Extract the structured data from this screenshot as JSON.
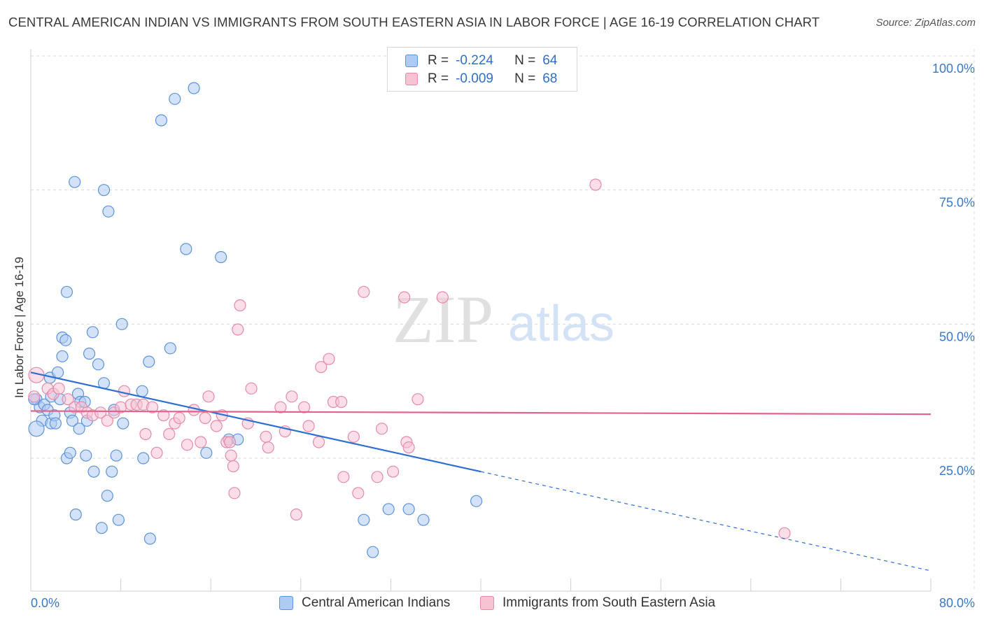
{
  "header": {
    "title": "CENTRAL AMERICAN INDIAN VS IMMIGRANTS FROM SOUTH EASTERN ASIA IN LABOR FORCE | AGE 16-19 CORRELATION CHART",
    "source": "Source: ZipAtlas.com"
  },
  "legend": {
    "r_label": "R =",
    "n_label": "N =",
    "rows": [
      {
        "r": "-0.224",
        "n": "64",
        "color": "#7fb0f0"
      },
      {
        "r": "-0.009",
        "n": "68",
        "color": "#f3a8c0"
      }
    ]
  },
  "watermark": {
    "zip": "ZIP",
    "atlas": "atlas"
  },
  "colors": {
    "blue_fill": "#aecbf3",
    "blue_stroke": "#5b93dc",
    "blue_line": "#2d6fd2",
    "pink_fill": "#f7c3d3",
    "pink_stroke": "#e58aa8",
    "pink_line": "#e3638c",
    "tick_label": "#3a78c9",
    "grid": "#d9d9d9"
  },
  "chart_data": {
    "type": "scatter",
    "ylabel": "In Labor Force | Age 16-19",
    "xlabel": "",
    "xlim": [
      0,
      80
    ],
    "ylim": [
      0,
      104
    ],
    "x_tick_labels": [
      "0.0%",
      "80.0%"
    ],
    "y_ticks": [
      25,
      50,
      75,
      100
    ],
    "y_tick_labels": [
      "25.0%",
      "50.0%",
      "75.0%",
      "100.0%"
    ],
    "grid": true,
    "legend_position": "top-center",
    "series": [
      {
        "name": "Central American Indians",
        "color": "#5b93dc",
        "trend": {
          "x": [
            0,
            40
          ],
          "y": [
            41.0,
            22.5
          ],
          "dashed_to": [
            80,
            4.0
          ]
        },
        "points": [
          [
            0.5,
            36
          ],
          [
            0.8,
            34.5
          ],
          [
            1,
            32
          ],
          [
            1.2,
            35
          ],
          [
            1.5,
            34
          ],
          [
            1.7,
            40
          ],
          [
            1.8,
            36.5
          ],
          [
            1.8,
            31.5
          ],
          [
            2.1,
            33
          ],
          [
            2.2,
            31.5
          ],
          [
            2.4,
            41
          ],
          [
            2.6,
            36
          ],
          [
            2.8,
            44
          ],
          [
            2.8,
            47.5
          ],
          [
            3.1,
            47
          ],
          [
            3.2,
            56
          ],
          [
            3.2,
            25
          ],
          [
            3.5,
            26
          ],
          [
            3.5,
            33.5
          ],
          [
            3.7,
            32
          ],
          [
            3.9,
            76.5
          ],
          [
            4.0,
            14.5
          ],
          [
            4.2,
            37
          ],
          [
            4.3,
            30.5
          ],
          [
            4.4,
            35.5
          ],
          [
            4.8,
            35.5
          ],
          [
            4.9,
            25.5
          ],
          [
            5.0,
            32
          ],
          [
            5.2,
            44.5
          ],
          [
            5.5,
            48.5
          ],
          [
            5.6,
            22.5
          ],
          [
            6.0,
            42.5
          ],
          [
            6.3,
            12
          ],
          [
            6.5,
            39
          ],
          [
            6.5,
            75
          ],
          [
            6.8,
            18
          ],
          [
            6.9,
            71
          ],
          [
            7.2,
            22.5
          ],
          [
            7.6,
            25.5
          ],
          [
            7.8,
            13.5
          ],
          [
            8.1,
            50
          ],
          [
            8.2,
            31.5
          ],
          [
            9.9,
            37.5
          ],
          [
            10.0,
            25
          ],
          [
            10.5,
            43
          ],
          [
            10.6,
            10
          ],
          [
            11.6,
            88
          ],
          [
            12.4,
            45.5
          ],
          [
            12.8,
            92
          ],
          [
            13.8,
            64
          ],
          [
            14.5,
            94
          ],
          [
            15.6,
            26
          ],
          [
            16.9,
            62.5
          ],
          [
            17.6,
            28.5
          ],
          [
            18.4,
            28.5
          ],
          [
            29.6,
            13.5
          ],
          [
            30.4,
            7.5
          ],
          [
            31.8,
            15.5
          ],
          [
            33.6,
            15.5
          ],
          [
            34.9,
            13.5
          ],
          [
            39.6,
            17
          ],
          [
            0.5,
            30.5
          ],
          [
            0.3,
            36
          ],
          [
            7.4,
            34
          ]
        ]
      },
      {
        "name": "Immigrants from South Eastern Asia",
        "color": "#e58aa8",
        "trend": {
          "x": [
            0,
            80
          ],
          "y": [
            33.8,
            33.2
          ]
        },
        "points": [
          [
            0.5,
            40.5
          ],
          [
            1.5,
            38
          ],
          [
            2.0,
            37
          ],
          [
            2.5,
            38
          ],
          [
            3.3,
            36
          ],
          [
            3.9,
            34.5
          ],
          [
            4.5,
            34.5
          ],
          [
            5,
            33.5
          ],
          [
            5.5,
            33
          ],
          [
            6.2,
            33.5
          ],
          [
            6.8,
            32
          ],
          [
            7.4,
            33.5
          ],
          [
            8.0,
            34.5
          ],
          [
            8.3,
            37.5
          ],
          [
            8.9,
            35
          ],
          [
            9.4,
            35
          ],
          [
            10.0,
            35
          ],
          [
            10.2,
            29.5
          ],
          [
            10.8,
            34.5
          ],
          [
            11.2,
            26
          ],
          [
            11.8,
            33
          ],
          [
            12.3,
            29.5
          ],
          [
            12.8,
            31.5
          ],
          [
            13.2,
            32.5
          ],
          [
            13.9,
            27.5
          ],
          [
            14.5,
            34
          ],
          [
            15.1,
            28
          ],
          [
            15.5,
            32.5
          ],
          [
            15.8,
            36.5
          ],
          [
            16.5,
            31
          ],
          [
            17.0,
            33
          ],
          [
            17.4,
            28
          ],
          [
            17.7,
            28
          ],
          [
            17.8,
            25.5
          ],
          [
            18.0,
            23.5
          ],
          [
            18.1,
            18.5
          ],
          [
            18.4,
            49
          ],
          [
            18.6,
            53.5
          ],
          [
            19.3,
            31.5
          ],
          [
            19.6,
            38
          ],
          [
            20.9,
            29
          ],
          [
            21.1,
            27
          ],
          [
            22.2,
            34.5
          ],
          [
            22.6,
            30
          ],
          [
            23.2,
            36.5
          ],
          [
            23.6,
            14.5
          ],
          [
            24.3,
            34.5
          ],
          [
            24.7,
            31
          ],
          [
            25.6,
            28
          ],
          [
            25.8,
            42
          ],
          [
            26.5,
            43.5
          ],
          [
            26.9,
            35.5
          ],
          [
            27.6,
            35.5
          ],
          [
            27.8,
            21.5
          ],
          [
            28.7,
            29
          ],
          [
            29.1,
            18.5
          ],
          [
            29.6,
            56
          ],
          [
            30.8,
            21.5
          ],
          [
            31.2,
            30.5
          ],
          [
            32.2,
            22.5
          ],
          [
            33.2,
            55
          ],
          [
            33.4,
            28
          ],
          [
            33.6,
            27
          ],
          [
            34.4,
            36
          ],
          [
            36.6,
            55
          ],
          [
            50.2,
            76
          ],
          [
            67.0,
            11
          ],
          [
            0.3,
            36.5
          ]
        ]
      }
    ]
  }
}
